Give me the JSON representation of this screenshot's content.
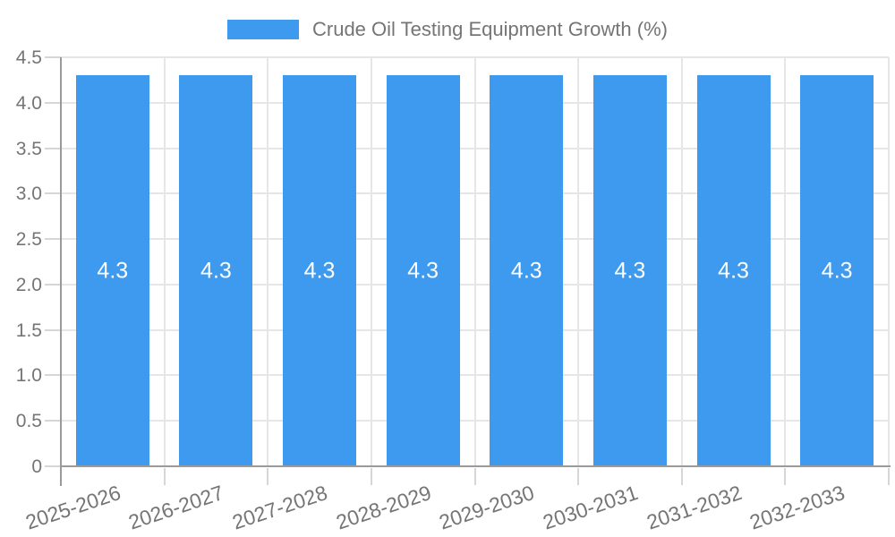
{
  "colors": {
    "bar": "#3D9AEF",
    "grid": "#E6E6E6",
    "axis": "#9A9A9A",
    "tick": "#D6D6D6",
    "text": "#757575",
    "value_label": "#FFFFFF",
    "background": "#FFFFFF"
  },
  "legend": {
    "label": "Crude Oil Testing Equipment Growth (%)"
  },
  "chart_data": {
    "type": "bar",
    "title": "Crude Oil Testing Equipment Growth (%)",
    "xlabel": "",
    "ylabel": "",
    "categories": [
      "2025-2026",
      "2026-2027",
      "2027-2028",
      "2028-2029",
      "2029-2030",
      "2030-2031",
      "2031-2032",
      "2032-2033"
    ],
    "values": [
      4.3,
      4.3,
      4.3,
      4.3,
      4.3,
      4.3,
      4.3,
      4.3
    ],
    "value_labels": [
      "4.3",
      "4.3",
      "4.3",
      "4.3",
      "4.3",
      "4.3",
      "4.3",
      "4.3"
    ],
    "ylim": [
      0,
      4.5
    ],
    "ytick_step": 0.5,
    "ytick_labels": [
      "0",
      "0.5",
      "1.0",
      "1.5",
      "2.0",
      "2.5",
      "3.0",
      "3.5",
      "4.0",
      "4.5"
    ],
    "grid": true,
    "legend_position": "top"
  }
}
